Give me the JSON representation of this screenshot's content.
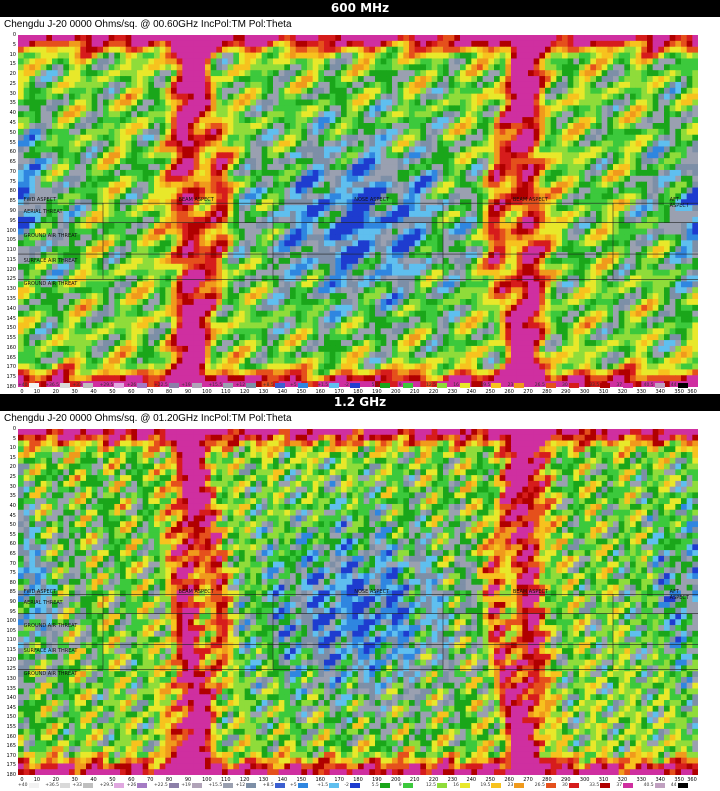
{
  "banners": [
    "600 MHz",
    "1.2 GHz"
  ],
  "panels": [
    {
      "title": "Chengdu J-20   0000 Ohms/sq. @ 00.60GHz IncPol:TM Pol:Theta"
    },
    {
      "title": "Chengdu J-20   0000 Ohms/sq. @ 01.20GHz IncPol:TM Pol:Theta"
    }
  ],
  "region_labels": {
    "fwd": "FWD ASPECT",
    "left": "BEAM ASPECT",
    "top": "NOSE ASPECT",
    "right": "BEAM ASPECT",
    "aft": "AFT ASPECT",
    "side_a": "AERIAL THREAT",
    "side_b": "GROUND AIR THREAT",
    "side_c": "SURFACE AIR THREAT",
    "side_d": "GROUND AIR THREAT"
  },
  "chart_data": [
    {
      "type": "heatmap",
      "title": "Chengdu J-20   0000 Ohms/sq. @ 00.60GHz IncPol:TM Pol:Theta",
      "x_ticks": [
        0,
        10,
        20,
        30,
        40,
        50,
        60,
        70,
        80,
        90,
        100,
        110,
        120,
        130,
        140,
        150,
        160,
        170,
        180,
        190,
        200,
        210,
        220,
        230,
        240,
        250,
        260,
        270,
        280,
        290,
        300,
        310,
        320,
        330,
        340,
        350,
        360
      ],
      "y_ticks": [
        0,
        5,
        10,
        15,
        20,
        25,
        30,
        35,
        40,
        45,
        50,
        55,
        60,
        65,
        70,
        75,
        80,
        85,
        90,
        95,
        100,
        105,
        110,
        115,
        120,
        125,
        130,
        135,
        140,
        145,
        150,
        155,
        160,
        165,
        170,
        175,
        180
      ],
      "xlim": [
        0,
        360
      ],
      "ylim": [
        0,
        180
      ],
      "legend_levels": [
        "+40",
        "+36.5",
        "+33",
        "+29.5",
        "+26",
        "+22.5",
        "+19",
        "+15.5",
        "+12",
        "+8.5",
        "+5",
        "+1.5",
        "-2",
        "5.5",
        "9",
        "12.5",
        "16",
        "19.5",
        "23",
        "26.5",
        "30",
        "33.5",
        "37",
        "40.5",
        "44"
      ],
      "legend_colors": [
        "#f2f2f2",
        "#d9d9d9",
        "#bfbfbf",
        "#e0a8e0",
        "#a57bc4",
        "#8c7fa8",
        "#b0a3b8",
        "#9aa0b0",
        "#7d8fa7",
        "#3c5fd0",
        "#2f86e0",
        "#5fbfef",
        "#1e3ccf",
        "#1aa61a",
        "#3cc93c",
        "#8fdc3a",
        "#e8e82a",
        "#f7c21e",
        "#f09a1c",
        "#e5501c",
        "#d61c1c",
        "#b00000",
        "#cf2fa0",
        "#c0a0c0",
        "#000000"
      ]
    },
    {
      "type": "heatmap",
      "title": "Chengdu J-20   0000 Ohms/sq. @ 01.20GHz IncPol:TM Pol:Theta",
      "x_ticks": [
        0,
        10,
        20,
        30,
        40,
        50,
        60,
        70,
        80,
        90,
        100,
        110,
        120,
        130,
        140,
        150,
        160,
        170,
        180,
        190,
        200,
        210,
        220,
        230,
        240,
        250,
        260,
        270,
        280,
        290,
        300,
        310,
        320,
        330,
        340,
        350,
        360
      ],
      "y_ticks": [
        0,
        5,
        10,
        15,
        20,
        25,
        30,
        35,
        40,
        45,
        50,
        55,
        60,
        65,
        70,
        75,
        80,
        85,
        90,
        95,
        100,
        105,
        110,
        115,
        120,
        125,
        130,
        135,
        140,
        145,
        150,
        155,
        160,
        165,
        170,
        175,
        180
      ],
      "xlim": [
        0,
        360
      ],
      "ylim": [
        0,
        180
      ],
      "legend_levels": [
        "+40",
        "+36.5",
        "+33",
        "+29.5",
        "+26",
        "+22.5",
        "+19",
        "+15.5",
        "+12",
        "+8.5",
        "+5",
        "+1.5",
        "-2",
        "5.5",
        "9",
        "12.5",
        "16",
        "19.5",
        "23",
        "26.5",
        "30",
        "33.5",
        "37",
        "40.5",
        "44"
      ],
      "legend_colors": [
        "#f2f2f2",
        "#d9d9d9",
        "#bfbfbf",
        "#e0a8e0",
        "#a57bc4",
        "#8c7fa8",
        "#b0a3b8",
        "#9aa0b0",
        "#7d8fa7",
        "#3c5fd0",
        "#2f86e0",
        "#5fbfef",
        "#1e3ccf",
        "#1aa61a",
        "#3cc93c",
        "#8fdc3a",
        "#e8e82a",
        "#f7c21e",
        "#f09a1c",
        "#e5501c",
        "#d61c1c",
        "#b00000",
        "#cf2fa0",
        "#c0a0c0",
        "#000000"
      ]
    }
  ]
}
